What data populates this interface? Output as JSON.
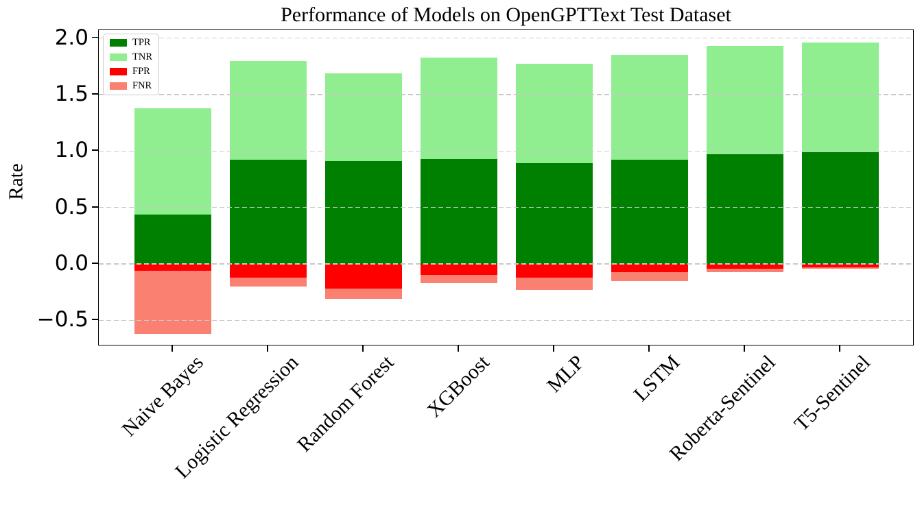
{
  "chart_data": {
    "type": "bar",
    "stacked": true,
    "title": "Performance of Models on OpenGPTText Test Dataset",
    "xlabel": "",
    "ylabel": "Rate",
    "categories": [
      "Naive Bayes",
      "Logistic Regression",
      "Random Forest",
      "XGBoost",
      "MLP",
      "LSTM",
      "Roberta-Sentinel",
      "T5-Sentinel"
    ],
    "series": [
      {
        "name": "TPR",
        "color": "#008000",
        "plotted": "above-zero",
        "values": [
          0.44,
          0.92,
          0.91,
          0.93,
          0.89,
          0.92,
          0.97,
          0.99
        ]
      },
      {
        "name": "TNR",
        "color": "#90ee90",
        "plotted": "above-zero",
        "values": [
          0.94,
          0.88,
          0.78,
          0.9,
          0.88,
          0.93,
          0.96,
          0.97
        ]
      },
      {
        "name": "FPR",
        "color": "#ff0000",
        "plotted": "below-zero",
        "values": [
          0.06,
          0.12,
          0.22,
          0.1,
          0.12,
          0.07,
          0.04,
          0.03
        ]
      },
      {
        "name": "FNR",
        "color": "#fa8072",
        "plotted": "below-zero",
        "values": [
          0.56,
          0.08,
          0.09,
          0.07,
          0.11,
          0.08,
          0.03,
          0.01
        ]
      }
    ],
    "yticks": [
      2.0,
      1.5,
      1.0,
      0.5,
      0.0,
      -0.5
    ],
    "ytick_labels": [
      "2.0",
      "1.5",
      "1.0",
      "0.5",
      "0.0",
      "−0.5"
    ],
    "ylim": [
      -0.73,
      2.07
    ],
    "grid": "horizontal-dashed",
    "grid_color": "#c9c9c9",
    "legend_position": "upper-left",
    "bar_colors": {
      "TPR": "#008000",
      "TNR": "#90ee90",
      "FPR": "#ff0000",
      "FNR": "#fa8072"
    }
  }
}
